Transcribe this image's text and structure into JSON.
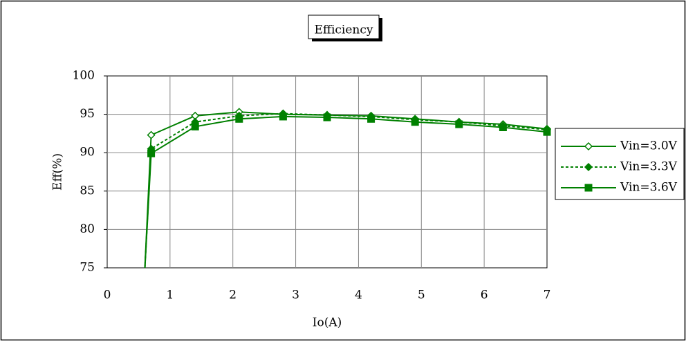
{
  "chart_data": {
    "type": "line",
    "title": "Efficiency",
    "xlabel": "Io(A)",
    "ylabel": "Eff(%)",
    "xlim": [
      0,
      7
    ],
    "ylim": [
      75,
      100
    ],
    "xticks": [
      "0",
      "1",
      "2",
      "3",
      "4",
      "5",
      "6",
      "7"
    ],
    "yticks": [
      "75",
      "80",
      "85",
      "90",
      "95",
      "100"
    ],
    "grid": true,
    "legend_position": "right",
    "series": [
      {
        "name": "Vin=3.0V",
        "marker": "diamond-open",
        "line": "solid",
        "color": "#008000",
        "x": [
          0.6,
          0.7,
          1.4,
          2.1,
          2.8,
          3.5,
          4.2,
          4.9,
          5.6,
          6.3,
          7.0
        ],
        "y": [
          75.0,
          92.3,
          94.8,
          95.3,
          95.0,
          94.9,
          94.8,
          94.4,
          94.0,
          93.7,
          93.1
        ]
      },
      {
        "name": "Vin=3.3V",
        "marker": "diamond-filled",
        "line": "dotted",
        "color": "#008000",
        "x": [
          0.6,
          0.7,
          1.4,
          2.1,
          2.8,
          3.5,
          4.2,
          4.9,
          5.6,
          6.3,
          7.0
        ],
        "y": [
          75.0,
          90.5,
          94.0,
          94.8,
          95.1,
          94.9,
          94.7,
          94.3,
          94.0,
          93.5,
          93.0
        ]
      },
      {
        "name": "Vin=3.6V",
        "marker": "square-filled",
        "line": "solid",
        "color": "#008000",
        "x": [
          0.6,
          0.7,
          1.4,
          2.1,
          2.8,
          3.5,
          4.2,
          4.9,
          5.6,
          6.3,
          7.0
        ],
        "y": [
          75.0,
          89.9,
          93.4,
          94.4,
          94.7,
          94.6,
          94.4,
          94.0,
          93.7,
          93.3,
          92.7
        ]
      }
    ]
  }
}
